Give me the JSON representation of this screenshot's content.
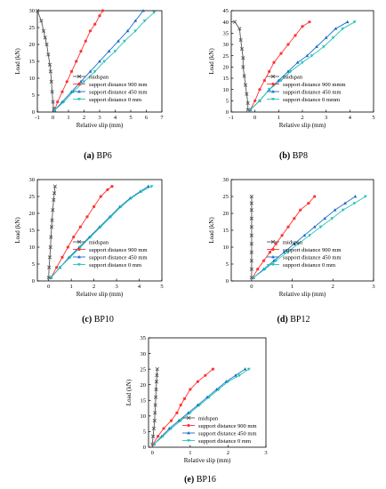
{
  "legend_labels": {
    "midspan": "midspan",
    "s900": "support distance 900 mm",
    "s900_bp8": "support distance 900 mmm",
    "s450": "support distance 450 mm",
    "s0": "support distance  0 mm",
    "s0_bp8": "support distance  0 mmm"
  },
  "series_colors": {
    "midspan": "#555555",
    "s900": "#ff3333",
    "s450": "#1e6bc8",
    "s0": "#22c4b4"
  },
  "chart_data": [
    {
      "type": "line",
      "caption_label": "(a)",
      "caption_text": " BP6",
      "xlabel": "Relative slip (mm)",
      "ylabel": "Load (kN)",
      "xlim": [
        -1,
        7
      ],
      "ylim": [
        0,
        30
      ],
      "xticks": [
        -1,
        0,
        1,
        2,
        3,
        4,
        5,
        6,
        7
      ],
      "yticks": [
        0,
        5,
        10,
        15,
        20,
        25,
        30
      ],
      "series": [
        {
          "key": "midspan",
          "name": "midspan",
          "x": [
            0.05,
            0.0,
            -0.05,
            -0.1,
            -0.15,
            -0.2,
            -0.3,
            -0.4,
            -0.5,
            -0.6,
            -0.75,
            -1.0
          ],
          "y": [
            1,
            3,
            6,
            9,
            12,
            14,
            17,
            20,
            22,
            24,
            27,
            30
          ]
        },
        {
          "key": "s900",
          "name": "support distance 900 mm",
          "x": [
            0.1,
            0.3,
            0.6,
            0.9,
            1.2,
            1.5,
            1.8,
            2.1,
            2.4,
            2.7,
            3.0,
            3.2
          ],
          "y": [
            0.5,
            3,
            6,
            9,
            12,
            15,
            18,
            21,
            24,
            26,
            28.5,
            30
          ]
        },
        {
          "key": "s450",
          "name": "support distance 450 mm",
          "x": [
            0.1,
            0.6,
            1.2,
            1.8,
            2.4,
            3.0,
            3.6,
            4.2,
            4.8,
            5.3,
            5.8
          ],
          "y": [
            0.5,
            3,
            6,
            9,
            12,
            15,
            18,
            21,
            24,
            27,
            30
          ]
        },
        {
          "key": "s0",
          "name": "support distance  0 mm",
          "x": [
            0.1,
            0.7,
            1.3,
            2.0,
            2.7,
            3.3,
            4.0,
            4.6,
            5.3,
            5.9,
            6.5
          ],
          "y": [
            0.5,
            3,
            6,
            9,
            12,
            15,
            18,
            21,
            24,
            27,
            29.5
          ]
        }
      ]
    },
    {
      "type": "line",
      "caption_label": "(b)",
      "caption_text": " BP8",
      "xlabel": "Relative slip (mm)",
      "ylabel": "Load (kN)",
      "xlim": [
        -1,
        5
      ],
      "ylim": [
        0,
        45
      ],
      "xticks": [
        -1,
        0,
        1,
        2,
        3,
        4,
        5
      ],
      "yticks": [
        0,
        5,
        10,
        15,
        20,
        25,
        30,
        35,
        40,
        45
      ],
      "series": [
        {
          "key": "midspan",
          "name": "midspan",
          "x": [
            -0.3,
            -0.3,
            -0.35,
            -0.4,
            -0.45,
            -0.5,
            -0.5,
            -0.55,
            -0.6,
            -0.65,
            -0.85
          ],
          "y": [
            1,
            4,
            8,
            12,
            16,
            20,
            24,
            28,
            32,
            37,
            40
          ]
        },
        {
          "key": "s900",
          "name": "support distance 900 mmm",
          "x": [
            -0.2,
            0.0,
            0.2,
            0.4,
            0.6,
            0.8,
            1.1,
            1.4,
            1.7,
            2.0,
            2.3
          ],
          "y": [
            1,
            5,
            10,
            14,
            18,
            22,
            26,
            30,
            34,
            38,
            40
          ]
        },
        {
          "key": "s450",
          "name": "support distance 450 mm",
          "x": [
            -0.2,
            0.2,
            0.6,
            1.0,
            1.4,
            1.8,
            2.2,
            2.6,
            3.0,
            3.4,
            3.9
          ],
          "y": [
            1,
            5,
            10,
            14,
            18,
            22,
            25,
            29,
            33,
            37,
            40
          ]
        },
        {
          "key": "s0",
          "name": "support distance  0 mmm",
          "x": [
            -0.2,
            0.2,
            0.6,
            1.1,
            1.5,
            2.0,
            2.4,
            2.9,
            3.3,
            3.7,
            4.2
          ],
          "y": [
            1,
            5,
            10,
            14,
            18,
            22,
            25,
            29,
            33,
            37,
            40
          ]
        }
      ]
    },
    {
      "type": "line",
      "caption_label": "(c)",
      "caption_text": " BP10",
      "xlabel": "Relative slip (mm)",
      "ylabel": "Load (kN)",
      "xlim": [
        -0.5,
        5
      ],
      "ylim": [
        0,
        30
      ],
      "xticks": [
        0,
        1,
        2,
        3,
        4,
        5
      ],
      "yticks": [
        0,
        5,
        10,
        15,
        20,
        25,
        30
      ],
      "series": [
        {
          "key": "midspan",
          "name": "midspan",
          "x": [
            0.0,
            0.02,
            0.05,
            0.08,
            0.1,
            0.13,
            0.15,
            0.18,
            0.22,
            0.25,
            0.28
          ],
          "y": [
            1,
            4,
            7,
            10,
            13,
            16,
            18,
            21,
            24,
            26,
            28
          ]
        },
        {
          "key": "s900",
          "name": "support distance 900 mm",
          "x": [
            0.1,
            0.35,
            0.6,
            0.85,
            1.1,
            1.4,
            1.7,
            2.0,
            2.3,
            2.6,
            2.8
          ],
          "y": [
            1,
            4,
            7,
            10,
            13,
            16,
            19,
            22,
            25,
            27,
            28
          ]
        },
        {
          "key": "s450",
          "name": "support distance 450 mm",
          "x": [
            0.1,
            0.5,
            0.9,
            1.35,
            1.8,
            2.25,
            2.7,
            3.15,
            3.6,
            4.05,
            4.4
          ],
          "y": [
            1,
            4,
            7,
            10,
            13,
            16,
            19,
            22,
            24.5,
            26.5,
            28
          ]
        },
        {
          "key": "s0",
          "name": "support distance  0 mm",
          "x": [
            0.1,
            0.5,
            0.95,
            1.4,
            1.85,
            2.3,
            2.75,
            3.2,
            3.65,
            4.1,
            4.55
          ],
          "y": [
            1,
            4,
            7,
            10,
            13,
            16,
            19,
            22,
            24.5,
            26.5,
            28
          ]
        }
      ]
    },
    {
      "type": "line",
      "caption_label": "(d)",
      "caption_text": " BP12",
      "xlabel": "Relative slip (mm)",
      "ylabel": "Load (kN)",
      "xlim": [
        -0.5,
        3
      ],
      "ylim": [
        0,
        30
      ],
      "xticks": [
        0,
        1,
        2,
        3
      ],
      "yticks": [
        0,
        5,
        10,
        15,
        20,
        25,
        30
      ],
      "series": [
        {
          "key": "midspan",
          "name": "midspan",
          "x": [
            0,
            0,
            0,
            0,
            0,
            0,
            0,
            0,
            0,
            0,
            0
          ],
          "y": [
            1,
            3.5,
            6,
            8.5,
            11,
            13.5,
            16,
            18.5,
            21,
            23,
            25
          ]
        },
        {
          "key": "s900",
          "name": "support distance 900 mm",
          "x": [
            0.03,
            0.15,
            0.3,
            0.45,
            0.6,
            0.75,
            0.9,
            1.05,
            1.2,
            1.4,
            1.55
          ],
          "y": [
            1,
            3.5,
            6,
            8.5,
            11,
            13.5,
            16,
            18.5,
            21,
            23,
            25
          ]
        },
        {
          "key": "s450",
          "name": "support distance 450 mm",
          "x": [
            0.05,
            0.3,
            0.55,
            0.8,
            1.05,
            1.3,
            1.55,
            1.8,
            2.05,
            2.3,
            2.55
          ],
          "y": [
            1,
            3.5,
            6,
            8.5,
            11,
            13.5,
            16,
            18.5,
            21,
            23,
            25
          ]
        },
        {
          "key": "s0",
          "name": "support distance  0 mm",
          "x": [
            0.05,
            0.33,
            0.6,
            0.88,
            1.15,
            1.43,
            1.7,
            1.98,
            2.25,
            2.53,
            2.8
          ],
          "y": [
            1,
            3.5,
            6,
            8.5,
            11,
            13.5,
            16,
            18.5,
            21,
            23,
            25
          ]
        }
      ]
    },
    {
      "type": "line",
      "caption_label": "(e)",
      "caption_text": " BP16",
      "xlabel": "Relative slip (mm)",
      "ylabel": "Load (kN)",
      "xlim": [
        -0.1,
        3
      ],
      "ylim": [
        0,
        35
      ],
      "xticks": [
        0,
        1,
        2,
        3
      ],
      "yticks": [
        0,
        5,
        10,
        15,
        20,
        25,
        30,
        35
      ],
      "series": [
        {
          "key": "midspan",
          "name": "midspan",
          "x": [
            0.0,
            0.02,
            0.04,
            0.06,
            0.07,
            0.08,
            0.09,
            0.1,
            0.11,
            0.12,
            0.13
          ],
          "y": [
            1,
            3.5,
            6,
            8.5,
            11,
            13.5,
            16,
            18.5,
            21,
            23,
            25
          ]
        },
        {
          "key": "s900",
          "name": "support distance 900 mm",
          "x": [
            0.02,
            0.15,
            0.3,
            0.5,
            0.65,
            0.75,
            0.85,
            1.0,
            1.2,
            1.4,
            1.6
          ],
          "y": [
            1,
            3.5,
            6,
            8.5,
            11,
            13.5,
            15.5,
            18.5,
            21,
            23,
            25
          ]
        },
        {
          "key": "s450",
          "name": "support distance 450 mm",
          "x": [
            0.05,
            0.25,
            0.45,
            0.7,
            0.95,
            1.2,
            1.45,
            1.7,
            1.95,
            2.2,
            2.45
          ],
          "y": [
            1,
            3.5,
            6,
            8.5,
            11,
            13.5,
            16,
            18.5,
            21,
            23,
            25
          ]
        },
        {
          "key": "s0",
          "name": "support distance  0 mm",
          "x": [
            0.05,
            0.28,
            0.5,
            0.75,
            1.0,
            1.25,
            1.5,
            1.75,
            2.0,
            2.3,
            2.55
          ],
          "y": [
            1,
            3.5,
            6,
            8.5,
            11,
            13.5,
            16,
            18.5,
            21,
            23,
            25
          ]
        }
      ]
    }
  ]
}
